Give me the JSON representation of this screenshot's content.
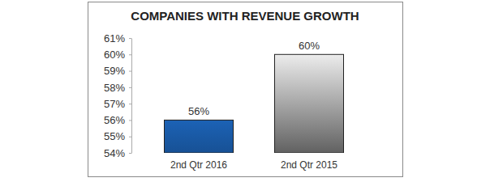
{
  "chart_data": {
    "type": "bar",
    "title": "COMPANIES WITH REVENUE GROWTH",
    "categories": [
      "2nd Qtr 2016",
      "2nd Qtr 2015"
    ],
    "values": [
      56,
      60
    ],
    "value_labels": [
      "56%",
      "60%"
    ],
    "colors": [
      "#1a5aa6",
      "#8a8a8a"
    ],
    "ylim": [
      54,
      61
    ],
    "yticks": [
      {
        "value": 54,
        "label": "54%"
      },
      {
        "value": 55,
        "label": "55%"
      },
      {
        "value": 56,
        "label": "56%"
      },
      {
        "value": 57,
        "label": "57%"
      },
      {
        "value": 58,
        "label": "58%"
      },
      {
        "value": 59,
        "label": "59%"
      },
      {
        "value": 60,
        "label": "60%"
      },
      {
        "value": 61,
        "label": "61%"
      }
    ],
    "data_labels": true
  }
}
